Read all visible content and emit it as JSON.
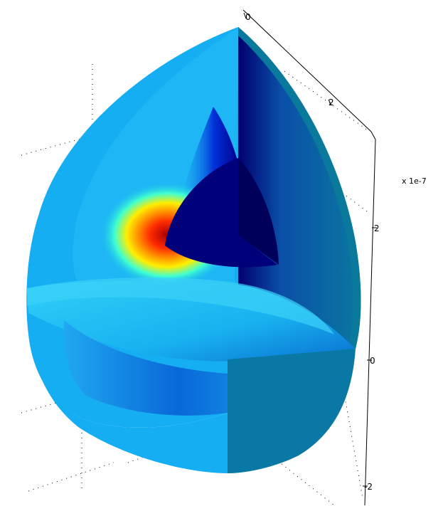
{
  "figure": {
    "axis_scale_label": "x 1e-7",
    "top_axis_ticks": [
      "0",
      "2"
    ],
    "vertical_axis_ticks": [
      "2",
      "0",
      "-2"
    ],
    "colormap": "jet",
    "background": "#ffffff",
    "grid": "dotted"
  },
  "colors": {
    "outer_shell": "#12aaf0",
    "cut_face_dark": "#0a6f98",
    "core": "#00007a",
    "hot_spot": "#e01010"
  }
}
